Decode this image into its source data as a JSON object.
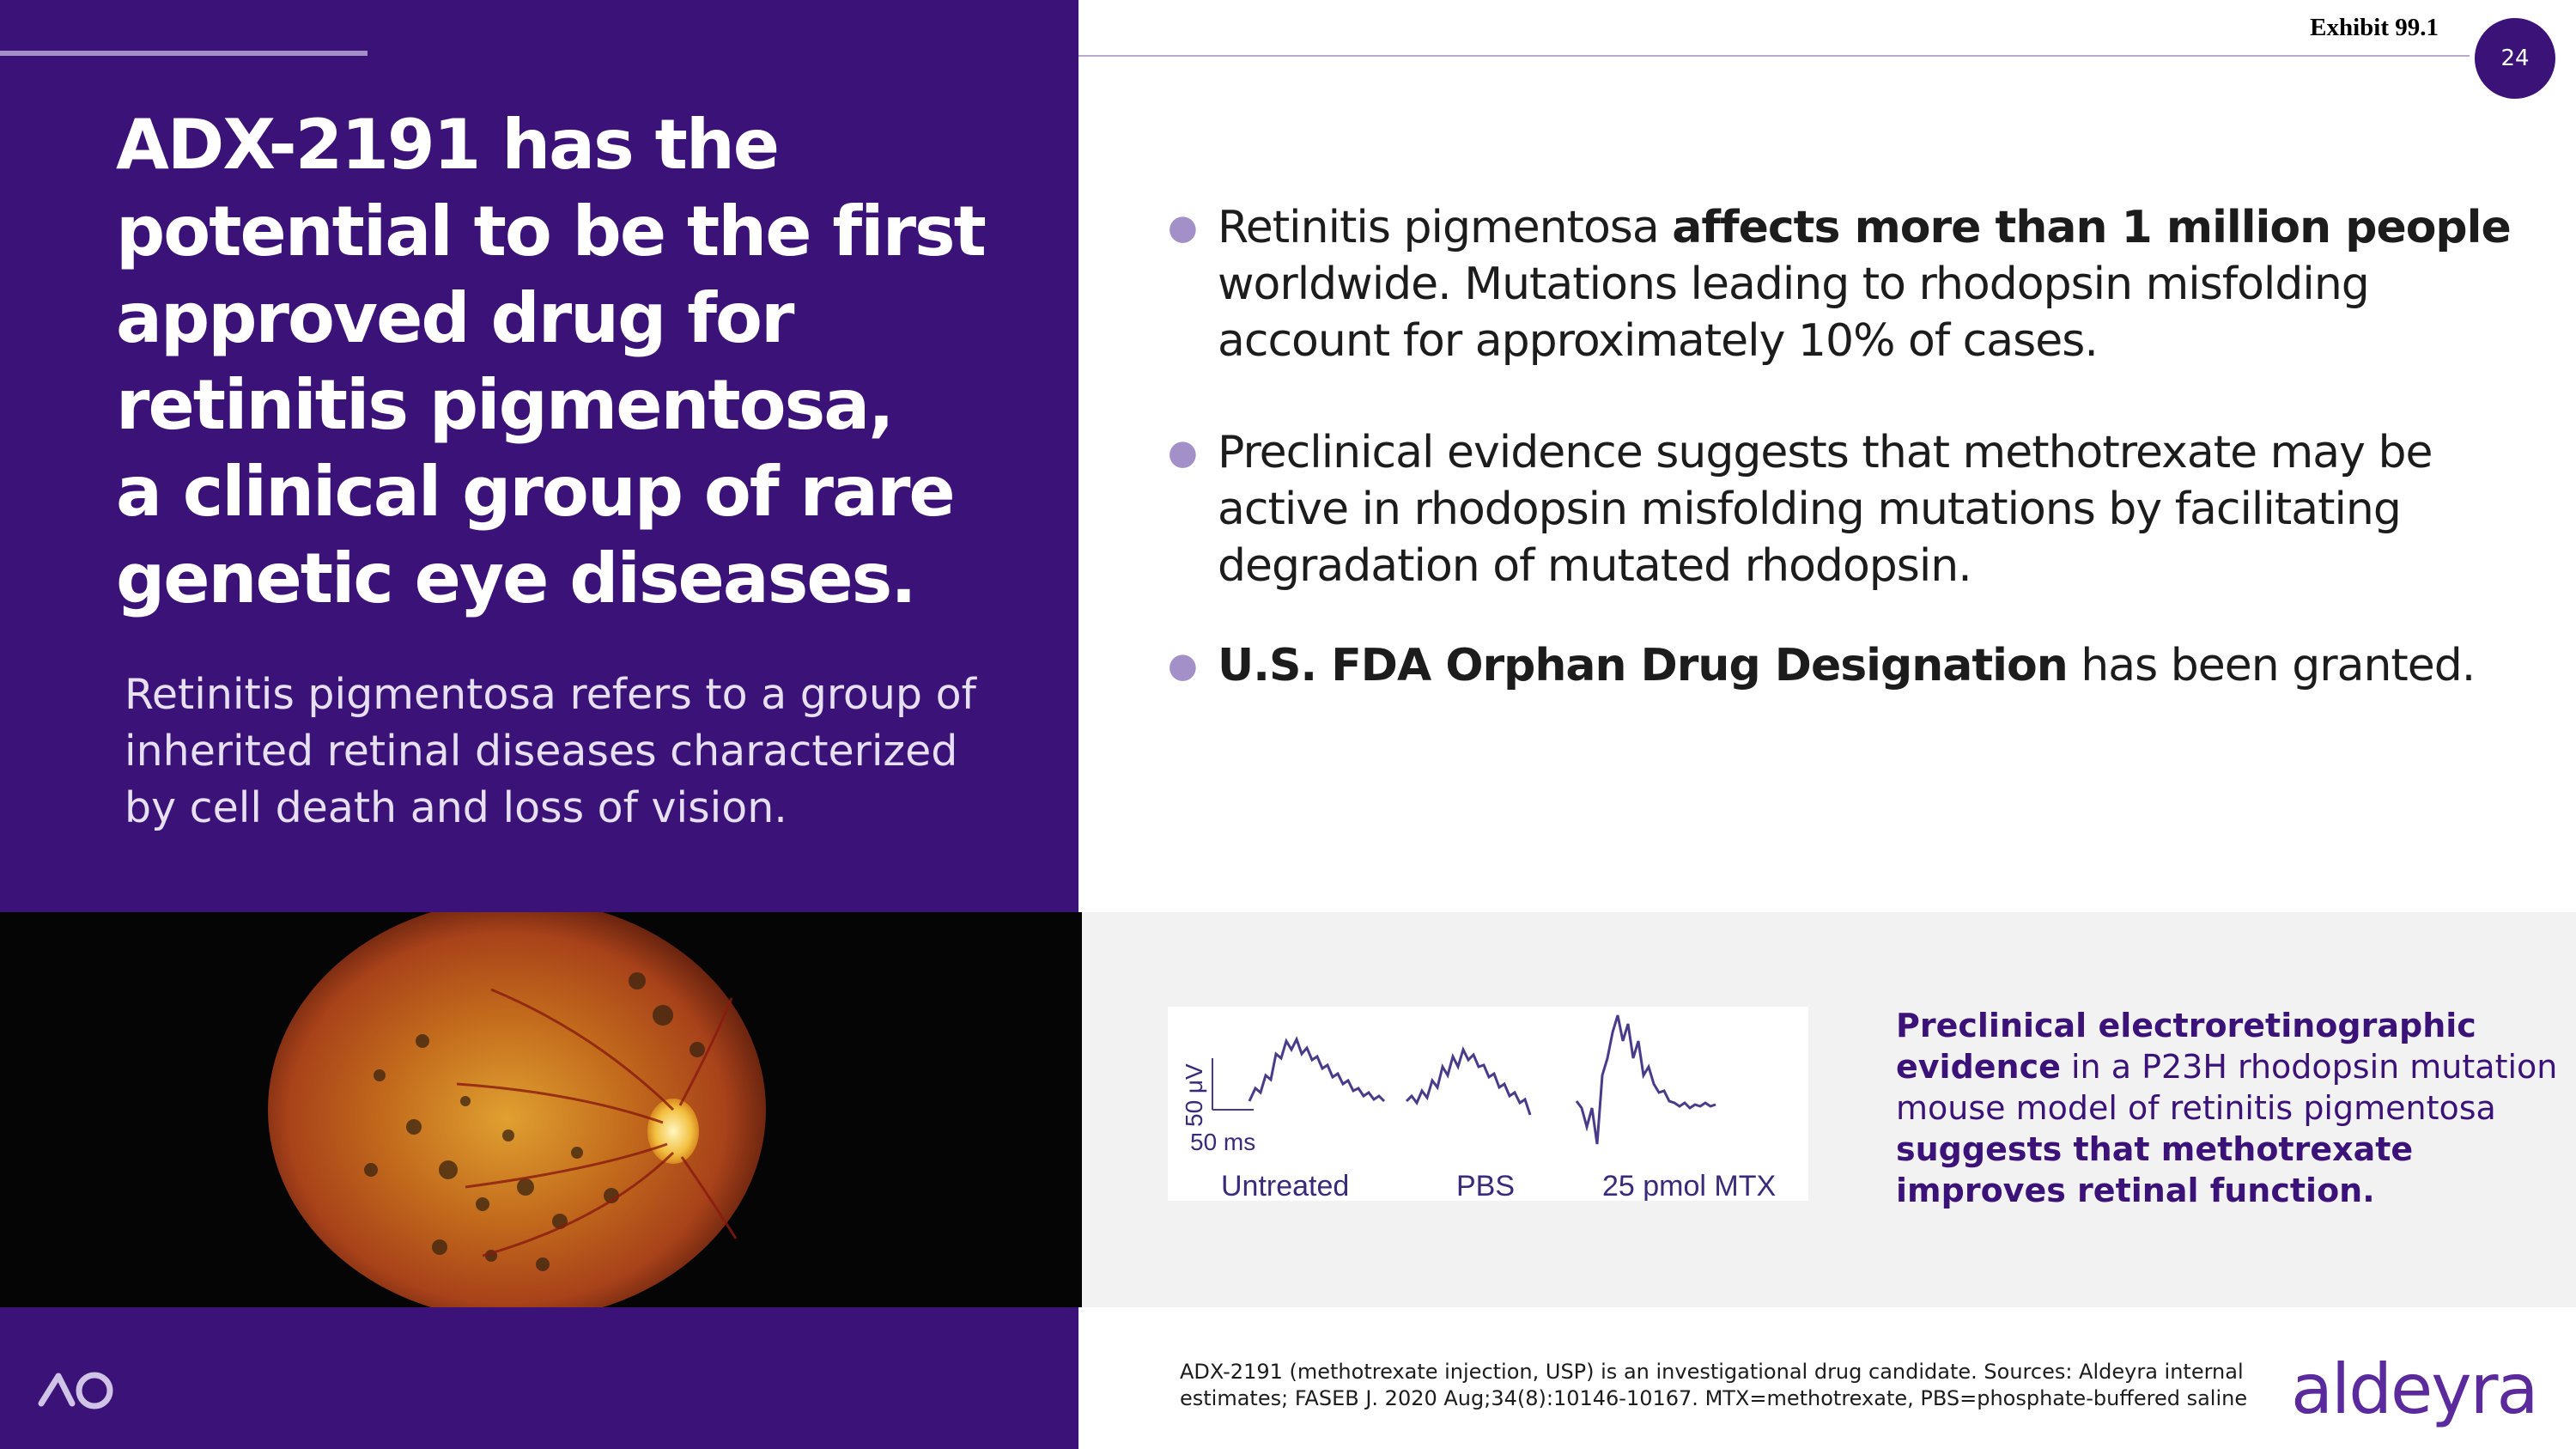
{
  "header": {
    "exhibit_label": "Exhibit 99.1",
    "page_number": "24"
  },
  "headline": {
    "lines": [
      "ADX-2191 has the",
      "potential to be the first",
      "approved drug for",
      "retinitis pigmentosa,",
      "a clinical group of rare",
      "genetic eye diseases."
    ]
  },
  "subtext": {
    "lines": [
      "Retinitis pigmentosa refers to a group of",
      "inherited retinal diseases characterized",
      "by cell death and loss of vision."
    ]
  },
  "bullets": {
    "b1": {
      "l1_pre": "Retinitis pigmentosa ",
      "l1_bold": "affects more than 1 million people",
      "l2": "worldwide. Mutations leading to rhodopsin misfolding",
      "l3": "account for approximately 10% of cases."
    },
    "b2": {
      "l1": "Preclinical evidence suggests that methotrexate may be",
      "l2": "active in rhodopsin misfolding mutations by facilitating",
      "l3": "degradation of mutated rhodopsin."
    },
    "b3": {
      "bold": "U.S. FDA Orphan Drug Designation",
      "rest": " has been granted."
    }
  },
  "erg_figure": {
    "scale_y": "50 μV",
    "scale_x": "50 ms",
    "labels": [
      "Untreated",
      "PBS",
      "25 pmol MTX"
    ]
  },
  "evidence_text": {
    "l1": "Preclinical electroretinographic",
    "l2_bold": "evidence",
    "l2_rest": " in a P23H rhodopsin mutation",
    "l3": "mouse model of retinitis pigmentosa",
    "l4": "suggests that methotrexate",
    "l5": "improves retinal function."
  },
  "footnote": {
    "l1": "ADX-2191 (methotrexate injection, USP) is an investigational drug candidate. Sources: Aldeyra internal",
    "l2": "estimates; FASEB J. 2020 Aug;34(8):10146-10167. MTX=methotrexate, PBS=phosphate-buffered saline"
  },
  "brand": {
    "name": "aldeyra"
  },
  "icons": {
    "footer_icon": "infinity-logo-icon",
    "bullet_icon": "bullet-dot-icon"
  },
  "colors": {
    "brand_purple": "#3b1278",
    "accent_lavender": "#a490c9"
  }
}
